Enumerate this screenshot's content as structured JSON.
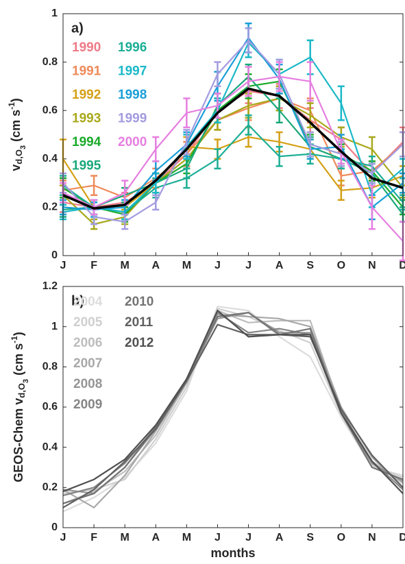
{
  "chart_data": [
    {
      "type": "line",
      "panel_label": "a)",
      "ylabel": [
        "v",
        "d,O",
        "3",
        " (cm s",
        "-1",
        ")"
      ],
      "categories": [
        "J",
        "F",
        "M",
        "A",
        "M",
        "J",
        "J",
        "A",
        "S",
        "O",
        "N",
        "D"
      ],
      "ylim": [
        0,
        1
      ],
      "yticks": [
        0,
        0.2,
        0.4,
        0.6,
        0.8,
        1
      ],
      "series": [
        {
          "name": "1990",
          "color": "#ee7a87",
          "values": [
            0.22,
            0.2,
            0.22,
            0.3,
            0.42,
            0.6,
            0.68,
            0.66,
            0.56,
            0.48,
            0.34,
            0.47
          ],
          "errors": [
            0.04,
            0.03,
            0.04,
            0.04,
            0.05,
            0.05,
            0.05,
            0.05,
            0.05,
            0.05,
            0.04,
            0.06
          ]
        },
        {
          "name": "1991",
          "color": "#ef8a5a",
          "values": [
            0.27,
            0.29,
            0.24,
            0.32,
            0.42,
            0.56,
            0.61,
            0.65,
            0.6,
            0.33,
            0.35,
            0.46
          ],
          "errors": [
            0.04,
            0.04,
            0.04,
            0.04,
            0.05,
            0.04,
            0.05,
            0.05,
            0.05,
            0.04,
            0.04,
            0.05
          ]
        },
        {
          "name": "1992",
          "color": "#d4a017",
          "values": [
            0.4,
            0.2,
            0.2,
            0.3,
            0.45,
            0.44,
            0.49,
            0.47,
            0.44,
            0.27,
            0.28,
            0.33
          ],
          "errors": [
            0.08,
            0.03,
            0.03,
            0.04,
            0.04,
            0.04,
            0.04,
            0.04,
            0.04,
            0.04,
            0.04,
            0.04
          ]
        },
        {
          "name": "1993",
          "color": "#a8a81c",
          "values": [
            0.25,
            0.13,
            0.16,
            0.3,
            0.4,
            0.56,
            0.62,
            0.65,
            0.58,
            0.49,
            0.44,
            0.28
          ],
          "errors": [
            0.04,
            0.02,
            0.03,
            0.04,
            0.04,
            0.04,
            0.05,
            0.05,
            0.05,
            0.04,
            0.05,
            0.04
          ]
        },
        {
          "name": "1994",
          "color": "#1aaa2a",
          "values": [
            0.28,
            0.2,
            0.17,
            0.3,
            0.38,
            0.6,
            0.7,
            0.72,
            0.46,
            0.42,
            0.35,
            0.2
          ],
          "errors": [
            0.04,
            0.03,
            0.03,
            0.04,
            0.04,
            0.05,
            0.05,
            0.05,
            0.04,
            0.04,
            0.04,
            0.03
          ]
        },
        {
          "name": "1995",
          "color": "#1aa87a",
          "values": [
            0.19,
            0.2,
            0.25,
            0.3,
            0.36,
            0.62,
            0.74,
            0.6,
            0.45,
            0.4,
            0.34,
            0.17
          ],
          "errors": [
            0.03,
            0.03,
            0.03,
            0.04,
            0.04,
            0.05,
            0.05,
            0.05,
            0.04,
            0.04,
            0.04,
            0.03
          ]
        },
        {
          "name": "1996",
          "color": "#1cae96",
          "values": [
            0.29,
            0.2,
            0.18,
            0.28,
            0.32,
            0.4,
            0.54,
            0.41,
            0.42,
            0.4,
            0.37,
            0.22
          ],
          "errors": [
            0.04,
            0.03,
            0.03,
            0.04,
            0.04,
            0.04,
            0.04,
            0.04,
            0.04,
            0.04,
            0.04,
            0.03
          ]
        },
        {
          "name": "1997",
          "color": "#1ab8c8",
          "values": [
            0.18,
            0.2,
            0.18,
            0.3,
            0.45,
            0.6,
            0.88,
            0.75,
            0.82,
            0.63,
            0.25,
            0.36
          ],
          "errors": [
            0.03,
            0.03,
            0.03,
            0.04,
            0.05,
            0.05,
            0.06,
            0.06,
            0.07,
            0.07,
            0.05,
            0.04
          ]
        },
        {
          "name": "1998",
          "color": "#1a9fd8",
          "values": [
            0.2,
            0.19,
            0.2,
            0.35,
            0.46,
            0.7,
            0.9,
            0.73,
            0.44,
            0.45,
            0.2,
            0.3
          ],
          "errors": [
            0.03,
            0.03,
            0.03,
            0.04,
            0.05,
            0.06,
            0.06,
            0.06,
            0.04,
            0.05,
            0.05,
            0.04
          ]
        },
        {
          "name": "1999",
          "color": "#a29be0",
          "values": [
            0.3,
            0.16,
            0.14,
            0.22,
            0.47,
            0.75,
            0.89,
            0.75,
            0.46,
            0.42,
            0.34,
            0.46
          ],
          "errors": [
            0.04,
            0.03,
            0.03,
            0.03,
            0.05,
            0.05,
            0.05,
            0.06,
            0.05,
            0.05,
            0.04,
            0.05
          ]
        },
        {
          "name": "2000",
          "color": "#e67ee0",
          "values": [
            0.26,
            0.2,
            0.26,
            0.44,
            0.59,
            0.62,
            0.72,
            0.74,
            0.72,
            0.43,
            0.2,
            0.06
          ],
          "errors": [
            0.04,
            0.03,
            0.05,
            0.05,
            0.06,
            0.05,
            0.06,
            0.06,
            0.08,
            0.05,
            0.09,
            0.08
          ]
        },
        {
          "color": "#000000",
          "values": [
            0.25,
            0.195,
            0.21,
            0.31,
            0.44,
            0.59,
            0.69,
            0.66,
            0.55,
            0.43,
            0.32,
            0.28
          ]
        }
      ]
    },
    {
      "type": "line",
      "panel_label": "b)",
      "xlabel": "months",
      "ylabel": [
        "GEOS-Chem v",
        "d,O",
        "3",
        " (cm s",
        "-1",
        ")"
      ],
      "categories": [
        "J",
        "F",
        "M",
        "A",
        "M",
        "J",
        "J",
        "A",
        "S",
        "O",
        "N",
        "D"
      ],
      "ylim": [
        0,
        1.2
      ],
      "yticks": [
        0,
        0.2,
        0.4,
        0.6,
        0.8,
        1,
        1.2
      ],
      "series": [
        {
          "name": "2004",
          "color": "#dcdcdc",
          "values": [
            0.08,
            0.15,
            0.25,
            0.42,
            0.68,
            1.1,
            1.08,
            0.95,
            0.85,
            0.55,
            0.3,
            0.26
          ]
        },
        {
          "name": "2005",
          "color": "#cfcfcf",
          "values": [
            0.17,
            0.19,
            0.24,
            0.44,
            0.7,
            1.09,
            1.05,
            0.98,
            0.92,
            0.56,
            0.31,
            0.25
          ]
        },
        {
          "name": "2006",
          "color": "#bdbdbd",
          "values": [
            0.12,
            0.18,
            0.28,
            0.46,
            0.72,
            1.08,
            1.02,
            1.03,
            1.03,
            0.58,
            0.33,
            0.22
          ]
        },
        {
          "name": "2007",
          "color": "#a8a8a8",
          "values": [
            0.19,
            0.1,
            0.26,
            0.48,
            0.72,
            1.06,
            1.05,
            1.04,
            1.0,
            0.6,
            0.35,
            0.2
          ]
        },
        {
          "name": "2008",
          "color": "#959595",
          "values": [
            0.19,
            0.17,
            0.3,
            0.49,
            0.73,
            1.04,
            1.07,
            0.97,
            0.97,
            0.57,
            0.32,
            0.23
          ]
        },
        {
          "name": "2009",
          "color": "#858585",
          "values": [
            0.16,
            0.2,
            0.32,
            0.5,
            0.74,
            1.07,
            0.97,
            0.99,
            0.96,
            0.58,
            0.33,
            0.19
          ]
        },
        {
          "name": "2010",
          "color": "#737373",
          "values": [
            0.12,
            0.17,
            0.3,
            0.5,
            0.74,
            1.05,
            1.07,
            0.96,
            0.99,
            0.57,
            0.3,
            0.24
          ]
        },
        {
          "name": "2011",
          "color": "#606060",
          "values": [
            0.1,
            0.19,
            0.33,
            0.49,
            0.73,
            1.01,
            0.96,
            0.96,
            0.95,
            0.59,
            0.36,
            0.2
          ]
        },
        {
          "name": "2012",
          "color": "#505050",
          "values": [
            0.18,
            0.24,
            0.34,
            0.51,
            0.74,
            1.08,
            0.95,
            0.96,
            0.96,
            0.57,
            0.33,
            0.17
          ]
        }
      ]
    }
  ]
}
